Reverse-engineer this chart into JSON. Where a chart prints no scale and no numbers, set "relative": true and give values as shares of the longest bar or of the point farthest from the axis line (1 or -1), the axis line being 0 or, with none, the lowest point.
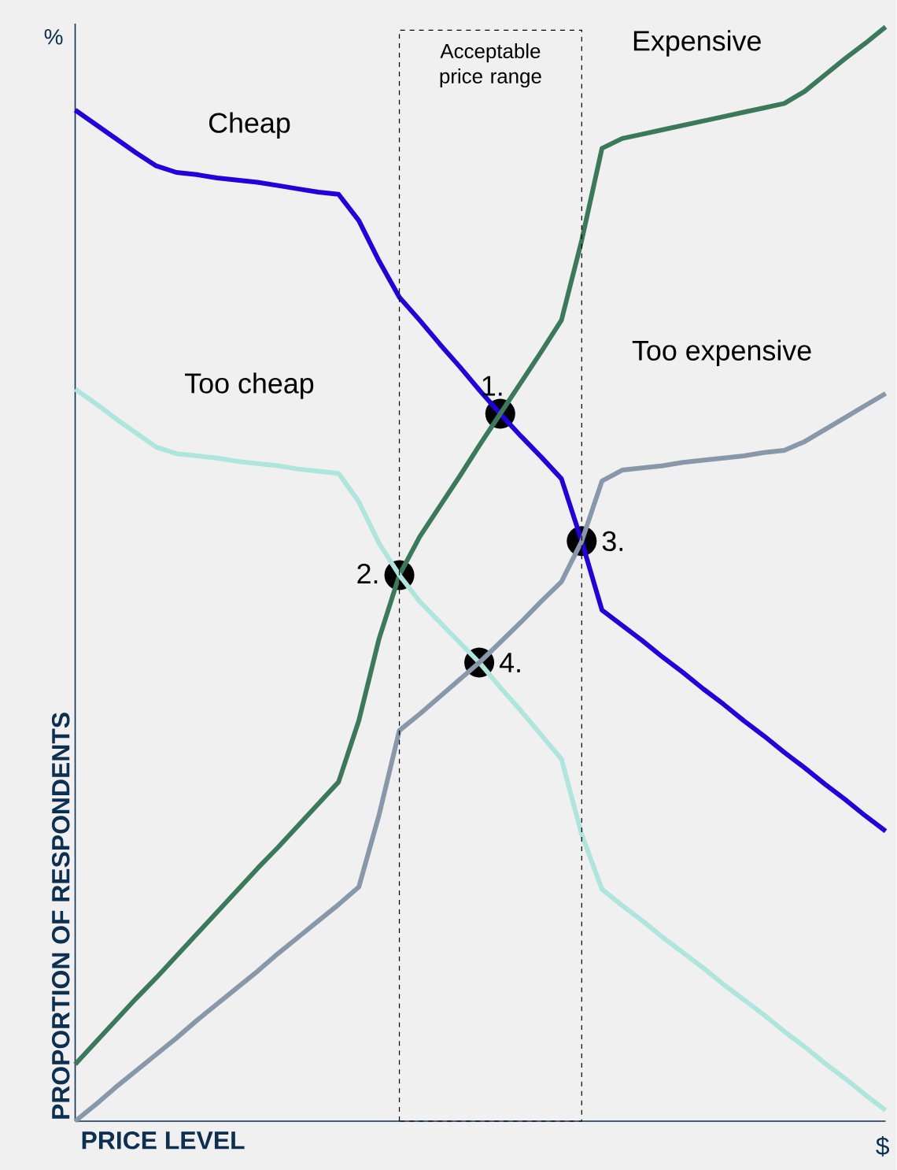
{
  "chart_data": {
    "type": "line",
    "relative": true,
    "xlabel": "PRICE LEVEL",
    "ylabel": "PROPORTION OF RESPONDENTS",
    "marker": "none",
    "line_style": "solid",
    "categories": [
      null,
      null,
      null,
      null,
      null,
      null,
      null,
      null,
      null,
      null,
      null,
      null,
      null,
      null,
      null,
      null,
      null,
      null,
      null,
      null,
      null,
      null,
      null,
      null,
      null,
      null,
      null,
      null,
      null,
      null,
      null,
      null,
      null,
      null,
      null,
      null,
      null,
      null,
      null,
      null,
      null
    ],
    "series": [
      {
        "name": "Cheap",
        "color": "#2200dd",
        "values": [
          0.924,
          0.911,
          0.898,
          0.885,
          0.873,
          0.867,
          0.865,
          0.862,
          0.86,
          0.858,
          0.855,
          0.852,
          0.849,
          0.847,
          0.823,
          0.786,
          0.753,
          0.732,
          0.71,
          0.689,
          0.667,
          0.646,
          0.626,
          0.607,
          0.587,
          0.53,
          0.467,
          0.453,
          0.439,
          0.424,
          0.41,
          0.395,
          0.381,
          0.366,
          0.352,
          0.337,
          0.323,
          0.308,
          0.294,
          0.279,
          0.265
        ]
      },
      {
        "name": "Expensive",
        "color": "#3a7a5a",
        "values": [
          0.052,
          0.072,
          0.092,
          0.112,
          0.131,
          0.151,
          0.171,
          0.191,
          0.211,
          0.231,
          0.25,
          0.27,
          0.29,
          0.31,
          0.366,
          0.441,
          0.499,
          0.534,
          0.562,
          0.59,
          0.619,
          0.647,
          0.675,
          0.703,
          0.732,
          0.805,
          0.889,
          0.898,
          0.902,
          0.906,
          0.91,
          0.914,
          0.918,
          0.922,
          0.926,
          0.93,
          0.941,
          0.956,
          0.971,
          0.985,
          1.0
        ]
      },
      {
        "name": "Too cheap",
        "color": "#aee5dc",
        "values": [
          0.669,
          0.656,
          0.642,
          0.629,
          0.616,
          0.61,
          0.608,
          0.606,
          0.603,
          0.601,
          0.599,
          0.596,
          0.594,
          0.592,
          0.566,
          0.528,
          0.499,
          0.475,
          0.456,
          0.437,
          0.418,
          0.396,
          0.375,
          0.353,
          0.331,
          0.262,
          0.212,
          0.197,
          0.183,
          0.168,
          0.154,
          0.14,
          0.125,
          0.111,
          0.097,
          0.082,
          0.068,
          0.053,
          0.039,
          0.024,
          0.01
        ]
      },
      {
        "name": "Too expensive",
        "color": "#8898a8",
        "values": [
          0,
          0.015,
          0.031,
          0.046,
          0.061,
          0.076,
          0.092,
          0.107,
          0.122,
          0.137,
          0.153,
          0.168,
          0.183,
          0.198,
          0.214,
          0.28,
          0.357,
          0.372,
          0.388,
          0.404,
          0.42,
          0.438,
          0.456,
          0.475,
          0.493,
          0.53,
          0.585,
          0.595,
          0.597,
          0.599,
          0.602,
          0.604,
          0.606,
          0.608,
          0.611,
          0.613,
          0.621,
          0.632,
          0.643,
          0.654,
          0.665
        ]
      }
    ],
    "annotations": [
      "1.",
      "2.",
      "3.",
      "4.",
      "Acceptable price range",
      "%",
      "$"
    ]
  }
}
